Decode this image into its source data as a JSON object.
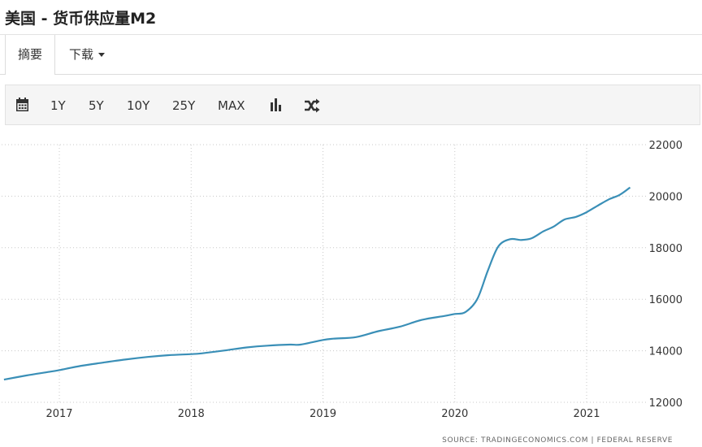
{
  "header": {
    "title": "美国 - 货币供应量M2"
  },
  "tabs": {
    "summary": "摘要",
    "download": "下载"
  },
  "toolbar": {
    "calendar_icon": "calendar-icon",
    "ranges": [
      "1Y",
      "5Y",
      "10Y",
      "25Y",
      "MAX"
    ],
    "bar_chart_icon": "bar-chart-icon",
    "shuffle_icon": "shuffle-icon"
  },
  "colors": {
    "line": "#3a8fb7",
    "grid": "#c8c8c8",
    "text": "#333333"
  },
  "source": "SOURCE: TRADINGECONOMICS.COM | FEDERAL RESERVE",
  "chart_data": {
    "type": "line",
    "title": "",
    "xlabel": "",
    "ylabel": "",
    "x_ticks": [
      "2017",
      "2018",
      "2019",
      "2020",
      "2021"
    ],
    "y_ticks": [
      12000,
      14000,
      16000,
      18000,
      20000,
      22000
    ],
    "ylim": [
      12000,
      22000
    ],
    "xlim": [
      2016.55,
      2021.45
    ],
    "grid": true,
    "series": [
      {
        "x": [
          2016.58,
          2016.75,
          2016.92,
          2017.0,
          2017.17,
          2017.33,
          2017.5,
          2017.67,
          2017.83,
          2018.0,
          2018.08,
          2018.25,
          2018.42,
          2018.58,
          2018.75,
          2018.83,
          2019.0,
          2019.08,
          2019.25,
          2019.42,
          2019.58,
          2019.75,
          2019.92,
          2020.0,
          2020.08,
          2020.17,
          2020.25,
          2020.33,
          2020.42,
          2020.5,
          2020.58,
          2020.67,
          2020.75,
          2020.83,
          2020.92,
          2021.0,
          2021.08,
          2021.17,
          2021.25,
          2021.33
        ],
        "y": [
          12880,
          13040,
          13180,
          13250,
          13420,
          13540,
          13660,
          13760,
          13830,
          13870,
          13900,
          14010,
          14130,
          14200,
          14240,
          14240,
          14420,
          14470,
          14530,
          14760,
          14930,
          15200,
          15350,
          15430,
          15500,
          16000,
          17100,
          18050,
          18330,
          18300,
          18360,
          18630,
          18820,
          19090,
          19200,
          19380,
          19620,
          19880,
          20050,
          20340
        ]
      }
    ]
  }
}
